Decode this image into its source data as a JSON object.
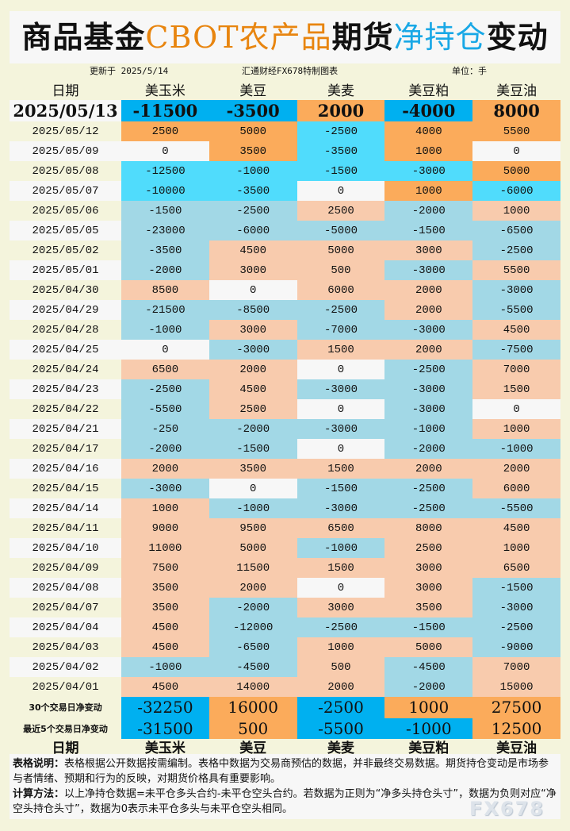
{
  "title": {
    "part1": "商品基金",
    "part2": "CBOT农产品",
    "part3": "期货",
    "part4": "净持仓",
    "part5": "变动"
  },
  "meta": {
    "updated": "更新于 2025/5/14",
    "source": "汇通财经FX678特制图表",
    "unit": "单位：手"
  },
  "columns": [
    "日期",
    "美玉米",
    "美豆",
    "美麦",
    "美豆粕",
    "美豆油"
  ],
  "colors": {
    "strong_neg": "#00b0f0",
    "strong_pos": "#fbab5b",
    "bright_neg": "#50dcfc",
    "bright_pos": "#fbab5b",
    "pale_neg": "#a2d8e6",
    "pale_pos": "#f8cbad",
    "zero": "#f7f7f7",
    "date_a": "#f4f4dc",
    "date_b": "#f7f7f7"
  },
  "latest": {
    "date": "2025/05/13",
    "values": [
      -11500,
      -3500,
      2000,
      -4000,
      8000
    ]
  },
  "rows": [
    {
      "date": "2025/05/12",
      "values": [
        2500,
        5000,
        -2500,
        4000,
        5500
      ]
    },
    {
      "date": "2025/05/09",
      "values": [
        0,
        3500,
        -3500,
        1000,
        0
      ]
    },
    {
      "date": "2025/05/08",
      "values": [
        -12500,
        -1000,
        -1500,
        -3000,
        5000
      ]
    },
    {
      "date": "2025/05/07",
      "values": [
        -10000,
        -3500,
        0,
        1000,
        -6000
      ]
    },
    {
      "date": "2025/05/06",
      "values": [
        -1500,
        -2500,
        2500,
        -2000,
        1000
      ]
    },
    {
      "date": "2025/05/05",
      "values": [
        -23000,
        -6000,
        -5000,
        -1500,
        -6500
      ]
    },
    {
      "date": "2025/05/02",
      "values": [
        -3500,
        4500,
        5000,
        3000,
        -2500
      ]
    },
    {
      "date": "2025/05/01",
      "values": [
        -2000,
        3000,
        500,
        -3000,
        5500
      ]
    },
    {
      "date": "2025/04/30",
      "values": [
        8500,
        0,
        6000,
        2000,
        -3000
      ]
    },
    {
      "date": "2025/04/29",
      "values": [
        -21500,
        -8500,
        -2500,
        2000,
        -5500
      ]
    },
    {
      "date": "2025/04/28",
      "values": [
        -1000,
        3000,
        -7000,
        -3000,
        4500
      ]
    },
    {
      "date": "2025/04/25",
      "values": [
        0,
        -3000,
        1500,
        2000,
        -7500
      ]
    },
    {
      "date": "2025/04/24",
      "values": [
        6500,
        2000,
        0,
        -2500,
        7000
      ]
    },
    {
      "date": "2025/04/23",
      "values": [
        -2500,
        4500,
        -3000,
        -3000,
        1500
      ]
    },
    {
      "date": "2025/04/22",
      "values": [
        -5500,
        2500,
        0,
        -3000,
        0
      ]
    },
    {
      "date": "2025/04/21",
      "values": [
        -250,
        -2000,
        -3000,
        -1000,
        1000
      ]
    },
    {
      "date": "2025/04/17",
      "values": [
        -2000,
        -1500,
        0,
        -2000,
        -1000
      ]
    },
    {
      "date": "2025/04/16",
      "values": [
        2000,
        3500,
        1500,
        2000,
        2000
      ]
    },
    {
      "date": "2025/04/15",
      "values": [
        -3000,
        0,
        -1500,
        -2500,
        6000
      ]
    },
    {
      "date": "2025/04/14",
      "values": [
        1000,
        -1000,
        -3000,
        -2500,
        -5500
      ]
    },
    {
      "date": "2025/04/11",
      "values": [
        9000,
        9500,
        6500,
        8000,
        4500
      ]
    },
    {
      "date": "2025/04/10",
      "values": [
        11000,
        5000,
        -1000,
        2500,
        1000
      ]
    },
    {
      "date": "2025/04/09",
      "values": [
        7500,
        11500,
        1500,
        3000,
        6500
      ]
    },
    {
      "date": "2025/04/08",
      "values": [
        3500,
        2000,
        0,
        3000,
        -1500
      ]
    },
    {
      "date": "2025/04/07",
      "values": [
        3500,
        -2000,
        3000,
        3500,
        -3000
      ]
    },
    {
      "date": "2025/04/04",
      "values": [
        4500,
        -12000,
        -2500,
        -1500,
        -2500
      ]
    },
    {
      "date": "2025/04/03",
      "values": [
        4500,
        -6500,
        1000,
        5000,
        -9000
      ]
    },
    {
      "date": "2025/04/02",
      "values": [
        -1000,
        -4500,
        500,
        -4500,
        7000
      ]
    },
    {
      "date": "2025/04/01",
      "values": [
        4500,
        14000,
        2000,
        -2000,
        15000
      ]
    }
  ],
  "summary": [
    {
      "label": "30个交易日净变动",
      "values": [
        -32250,
        16000,
        -2500,
        1000,
        27500
      ]
    },
    {
      "label": "最近5个交易日净变动",
      "values": [
        -31500,
        500,
        -5500,
        -1000,
        12500
      ]
    }
  ],
  "notes": {
    "desc_label": "表格说明：",
    "desc_text": "表格根据公开数据按需编制。表格中数据为交易商预估的数据，并非最终交易数据。期货持仓变动是市场参与者情绪、预期和行为的反映，对期货价格具有重要影响。",
    "calc_label": "计算方法：",
    "calc_text": "以上净持仓数据=未平仓多头合约-未平仓空头合约。若数据为正则为“净多头持仓头寸”，数据为负则对应“净空头持仓头寸”，数据为0表示未平仓多头与未平仓空头相同。"
  },
  "watermark": "FX678"
}
